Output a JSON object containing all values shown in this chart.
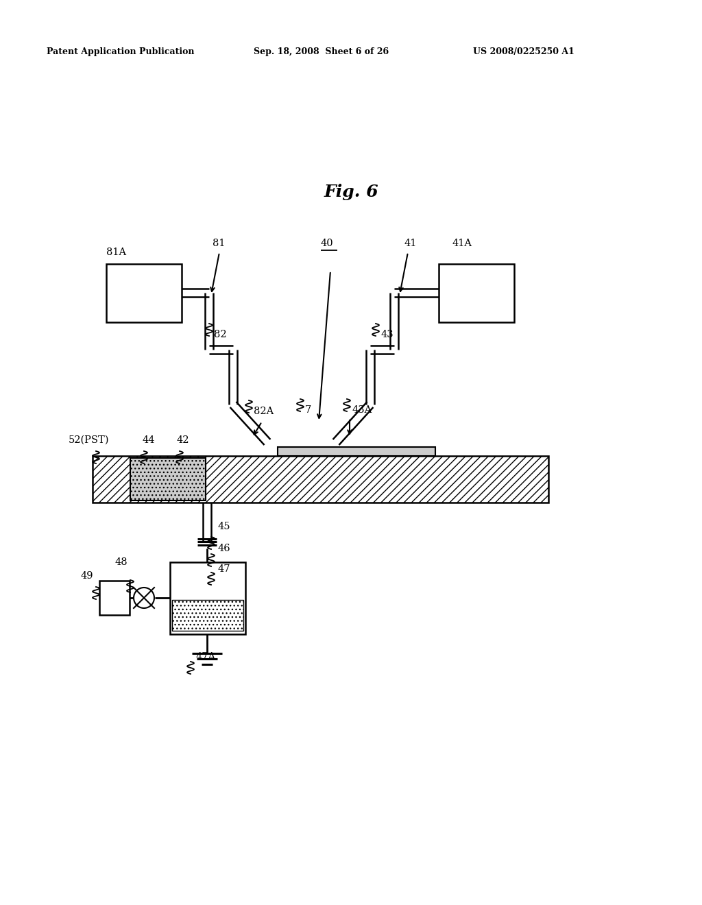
{
  "bg_color": "#ffffff",
  "header_left": "Patent Application Publication",
  "header_mid": "Sep. 18, 2008  Sheet 6 of 26",
  "header_right": "US 2008/0225250 A1",
  "fig_title": "Fig. 6"
}
